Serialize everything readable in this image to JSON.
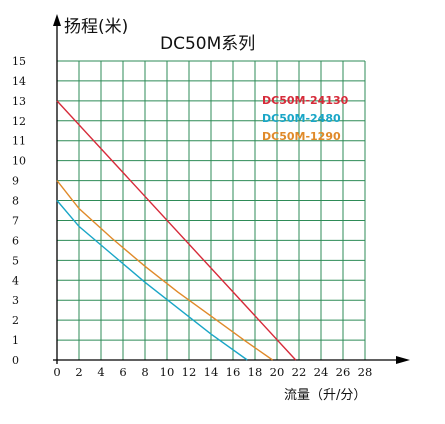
{
  "chart_data": {
    "type": "line",
    "title": "DC50M系列",
    "ylabel": "扬程(米)",
    "xlabel": "流量（升/分）",
    "xlim": [
      0,
      28
    ],
    "ylim": [
      0,
      15
    ],
    "x_ticks": [
      "0",
      "2",
      "4",
      "6",
      "8",
      "10",
      "12",
      "14",
      "16",
      "18",
      "20",
      "22",
      "24",
      "26",
      "28"
    ],
    "y_ticks": [
      "0",
      "1",
      "2",
      "3",
      "4",
      "5",
      "6",
      "7",
      "8",
      "9",
      "10",
      "11",
      "12",
      "13",
      "14",
      "15"
    ],
    "grid": true,
    "legend_position": "top-right",
    "series": [
      {
        "name": "DC50M-24130",
        "color": "#d62b3a",
        "x": [
          0,
          21.7
        ],
        "y": [
          13,
          0
        ]
      },
      {
        "name": "DC50M-2480",
        "color": "#1aa6c7",
        "x": [
          0,
          2,
          5,
          8,
          11,
          14,
          17.3
        ],
        "y": [
          8,
          6.7,
          5.3,
          3.9,
          2.6,
          1.3,
          0
        ]
      },
      {
        "name": "DC50M-1290",
        "color": "#e08a2a",
        "x": [
          0,
          2,
          5,
          8,
          11,
          14,
          17,
          19.6
        ],
        "y": [
          9,
          7.6,
          6.1,
          4.7,
          3.4,
          2.2,
          1,
          0
        ]
      }
    ]
  }
}
